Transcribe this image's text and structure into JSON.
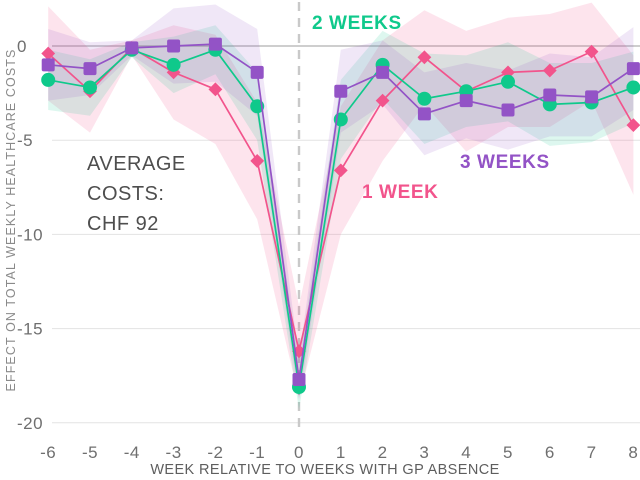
{
  "chart_data": {
    "type": "line",
    "title": "",
    "x": [
      -6,
      -5,
      -4,
      -3,
      -2,
      -1,
      0,
      1,
      2,
      3,
      4,
      5,
      6,
      7,
      8
    ],
    "x_tick_labels": [
      "-6",
      "-5",
      "-4",
      "-3",
      "-2",
      "-1",
      "0",
      "1",
      "2",
      "3",
      "4",
      "5",
      "6",
      "7",
      "8"
    ],
    "y_ticks": [
      0,
      -5,
      -10,
      -15,
      -20
    ],
    "y_tick_labels": [
      "0",
      "-5",
      "-10",
      "-15",
      "-20"
    ],
    "xlabel": "WEEK RELATIVE TO WEEKS WITH GP ABSENCE",
    "ylabel": "EFFECT ON TOTAL WEEKLY HEALTHCARE COSTS",
    "xlim": [
      -6.3,
      8.2
    ],
    "ylim": [
      -21,
      2.5
    ],
    "grid": true,
    "zero_line": true,
    "reference_line_x": 0,
    "legend_position": "direct-labels-on-chart",
    "annotation_text": "AVERAGE\nCOSTS:\nCHF 92",
    "series": [
      {
        "name": "1 WEEK",
        "color": "#F2548C",
        "marker": "diamond",
        "band_opacity": 0.16,
        "values": [
          -0.4,
          -2.4,
          -0.1,
          -1.4,
          -2.3,
          -6.1,
          -16.2,
          -6.6,
          -2.9,
          -0.6,
          -2.4,
          -1.4,
          -1.3,
          -0.3,
          -4.2
        ],
        "band_upper": [
          2.1,
          -0.2,
          0.3,
          1.1,
          0.6,
          -3.0,
          -13.8,
          -3.2,
          0.3,
          1.9,
          0.8,
          1.5,
          1.7,
          2.3,
          -0.5
        ],
        "band_lower": [
          -2.9,
          -4.6,
          -0.5,
          -3.9,
          -5.2,
          -9.2,
          -18.7,
          -10.0,
          -6.1,
          -3.1,
          -5.6,
          -4.3,
          -4.3,
          -2.9,
          -7.9
        ]
      },
      {
        "name": "2 WEEKS",
        "color": "#0FC98B",
        "marker": "circle",
        "band_opacity": 0.14,
        "values": [
          -1.8,
          -2.2,
          -0.2,
          -1.0,
          -0.2,
          -3.2,
          -18.1,
          -3.9,
          -1.0,
          -2.8,
          -2.4,
          -1.9,
          -3.1,
          -3.0,
          -2.2
        ],
        "band_upper": [
          -0.2,
          -0.7,
          0.2,
          0.5,
          1.1,
          -1.4,
          -16.9,
          -1.8,
          0.8,
          -0.4,
          -0.5,
          0.2,
          -0.9,
          -0.9,
          -0.3
        ],
        "band_lower": [
          -3.4,
          -3.7,
          -0.6,
          -2.5,
          -1.5,
          -5.0,
          -19.3,
          -6.0,
          -2.8,
          -5.2,
          -4.3,
          -4.0,
          -5.3,
          -5.1,
          -4.1
        ]
      },
      {
        "name": "3 WEEKS",
        "color": "#9353C6",
        "marker": "square",
        "band_opacity": 0.14,
        "values": [
          -1.0,
          -1.2,
          -0.1,
          0.0,
          0.1,
          -1.4,
          -17.7,
          -2.4,
          -1.4,
          -3.6,
          -2.9,
          -3.4,
          -2.6,
          -2.7,
          -1.2
        ],
        "band_upper": [
          0.9,
          0.2,
          0.3,
          2.0,
          2.2,
          0.9,
          -16.6,
          -0.2,
          0.3,
          -1.4,
          -0.9,
          -1.3,
          -0.4,
          -0.6,
          1.0
        ],
        "band_lower": [
          -2.9,
          -2.6,
          -0.5,
          -2.0,
          -1.9,
          -3.7,
          -18.8,
          -4.6,
          -3.1,
          -5.8,
          -4.9,
          -5.5,
          -4.8,
          -4.8,
          -3.4
        ]
      }
    ]
  },
  "colors": {
    "background": "#FFFFFF",
    "zero_line": "#BDBDBD",
    "gridline": "#E3E3E3",
    "dashed_reference": "#C9C9C9",
    "tick_text": "#6F6F6F",
    "axis_title": "#8A8A8A",
    "annotation_text": "#4E4E4E"
  }
}
